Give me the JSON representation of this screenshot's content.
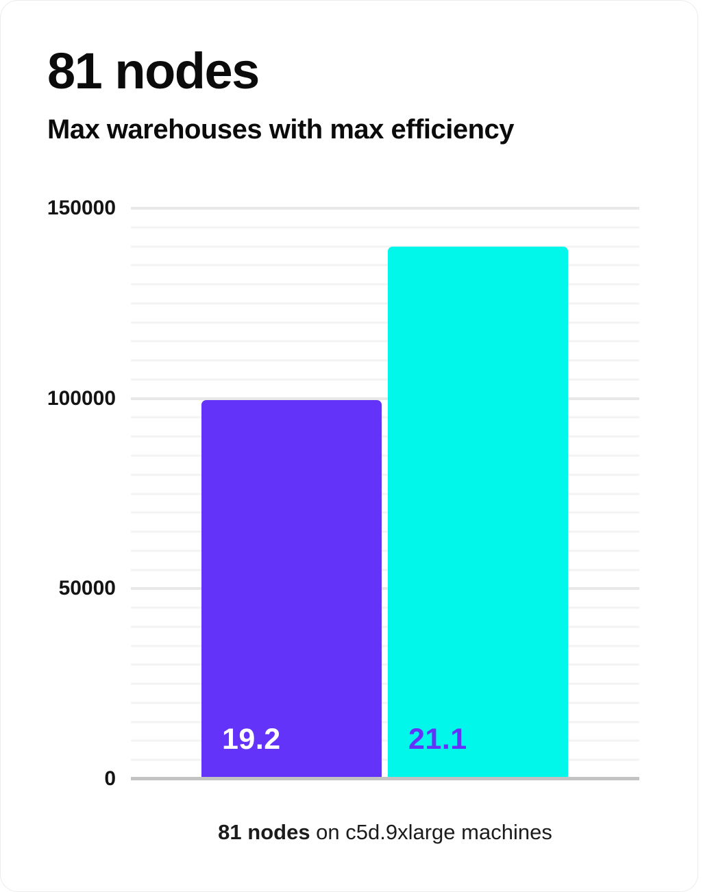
{
  "header": {
    "title": "81 nodes",
    "subtitle": "Max warehouses with max efficiency"
  },
  "caption": {
    "bold": "81 nodes",
    "rest": " on c5d.9xlarge machines"
  },
  "chart_data": {
    "type": "bar",
    "title": "81 nodes",
    "subtitle": "Max warehouses with max efficiency",
    "categories": [
      "19.2",
      "21.1"
    ],
    "values": [
      99500,
      140000
    ],
    "bar_colors": [
      "#6433fa",
      "#00f7e9"
    ],
    "bar_label_colors": [
      "#ffffff",
      "#6433fa"
    ],
    "ylabel": "",
    "xlabel": "",
    "ylim": [
      0,
      150000
    ],
    "yticks": [
      0,
      50000,
      100000,
      150000
    ],
    "minor_grid_step": 5000,
    "major_grid_step": 50000,
    "grid": true,
    "legend_position": "none",
    "annotation": "81 nodes on c5d.9xlarge machines"
  },
  "colors": {
    "accent_purple": "#6433fa",
    "accent_cyan": "#00f7e9",
    "minor_gridline": "#f3f3f3",
    "major_gridline": "#e8e8e8",
    "axis_baseline": "#c3c3c3",
    "text": "#0b0b0b"
  }
}
